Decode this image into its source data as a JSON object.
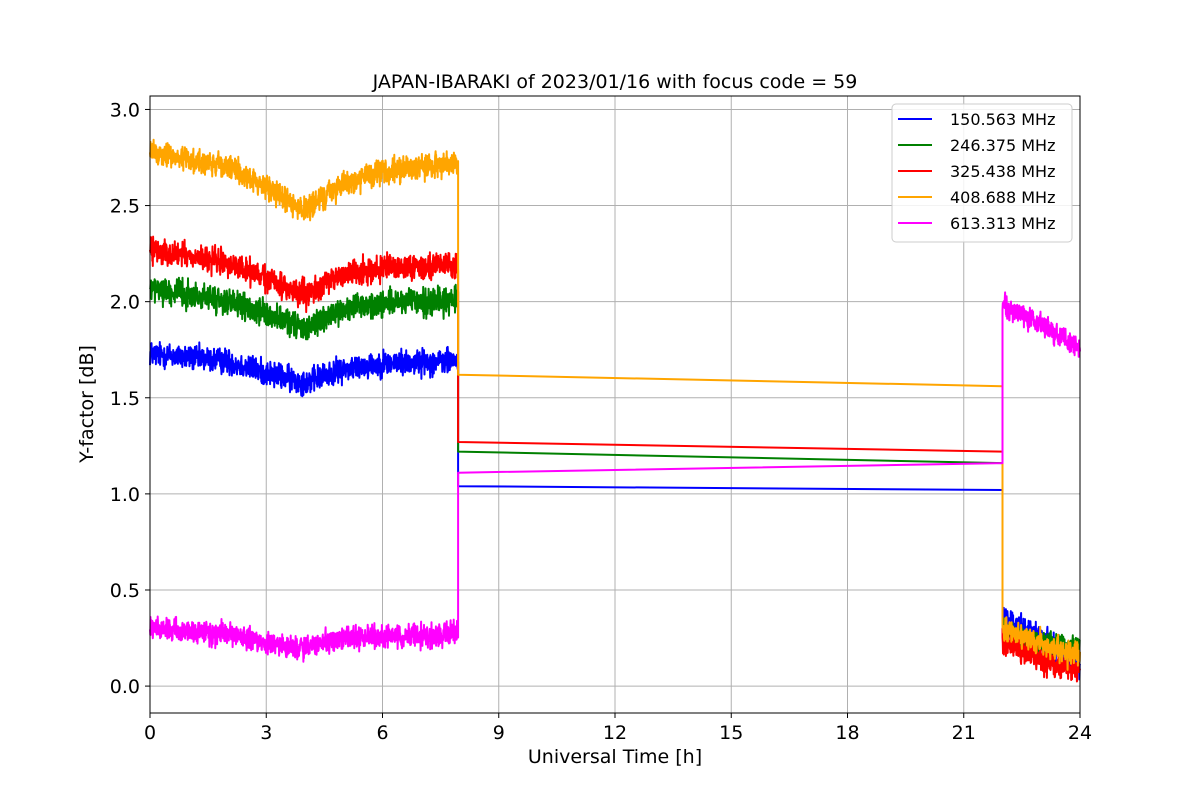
{
  "chart_data": {
    "type": "line",
    "title": "JAPAN-IBARAKI of 2023/01/16 with focus code = 59",
    "xlabel": "Universal Time [h]",
    "ylabel": "Y-factor [dB]",
    "xlim": [
      0,
      24
    ],
    "ylim": [
      -0.14,
      3.07
    ],
    "xticks": [
      0,
      3,
      6,
      9,
      12,
      15,
      18,
      21,
      24
    ],
    "yticks": [
      0.0,
      0.5,
      1.0,
      1.5,
      2.0,
      2.5,
      3.0
    ],
    "xtick_labels": [
      "0",
      "3",
      "6",
      "9",
      "12",
      "15",
      "18",
      "21",
      "24"
    ],
    "ytick_labels": [
      "0.0",
      "0.5",
      "1.0",
      "1.5",
      "2.0",
      "2.5",
      "3.0"
    ],
    "grid": true,
    "legend_position": "top-right",
    "series": [
      {
        "name": "150.563 MHz",
        "color": "#0000ff",
        "noise": 0.05,
        "segments": [
          {
            "x": [
              0,
              2,
              3,
              4,
              5,
              6,
              7.95
            ],
            "y": [
              1.73,
              1.69,
              1.63,
              1.58,
              1.65,
              1.68,
              1.69
            ]
          },
          {
            "x": [
              7.95,
              22.0
            ],
            "y": [
              1.04,
              1.02
            ]
          },
          {
            "x": [
              22.0,
              23.0,
              24.0
            ],
            "y": [
              0.35,
              0.25,
              0.1
            ]
          }
        ]
      },
      {
        "name": "246.375 MHz",
        "color": "#008000",
        "noise": 0.05,
        "segments": [
          {
            "x": [
              0,
              2,
              3,
              4,
              5,
              6,
              7.95
            ],
            "y": [
              2.07,
              2.0,
              1.93,
              1.86,
              1.96,
              1.99,
              2.01
            ]
          },
          {
            "x": [
              7.95,
              22.0
            ],
            "y": [
              1.22,
              1.16
            ]
          },
          {
            "x": [
              22.0,
              23.0,
              24.0
            ],
            "y": [
              0.28,
              0.22,
              0.2
            ]
          }
        ]
      },
      {
        "name": "325.438 MHz",
        "color": "#ff0000",
        "noise": 0.05,
        "segments": [
          {
            "x": [
              0,
              2,
              3,
              4,
              5,
              6,
              7.95
            ],
            "y": [
              2.27,
              2.2,
              2.12,
              2.03,
              2.15,
              2.17,
              2.2
            ]
          },
          {
            "x": [
              7.95,
              22.0
            ],
            "y": [
              1.27,
              1.22
            ]
          },
          {
            "x": [
              22.0,
              23.0,
              24.0
            ],
            "y": [
              0.22,
              0.14,
              0.08
            ]
          }
        ]
      },
      {
        "name": "408.688 MHz",
        "color": "#ffa500",
        "noise": 0.05,
        "segments": [
          {
            "x": [
              0,
              2,
              3,
              4,
              5,
              6,
              7.95
            ],
            "y": [
              2.78,
              2.7,
              2.6,
              2.47,
              2.62,
              2.67,
              2.73
            ]
          },
          {
            "x": [
              7.95,
              22.0
            ],
            "y": [
              1.62,
              1.56
            ]
          },
          {
            "x": [
              22.0,
              23.0,
              24.0
            ],
            "y": [
              0.3,
              0.22,
              0.15
            ]
          }
        ]
      },
      {
        "name": "613.313 MHz",
        "color": "#ff00ff",
        "noise": 0.045,
        "segments": [
          {
            "x": [
              0,
              2,
              3,
              4,
              5,
              6,
              7.95
            ],
            "y": [
              0.3,
              0.27,
              0.22,
              0.2,
              0.25,
              0.26,
              0.27
            ]
          },
          {
            "x": [
              7.95,
              22.0
            ],
            "y": [
              1.11,
              1.16
            ]
          },
          {
            "x": [
              22.0,
              23.0,
              24.0
            ],
            "y": [
              1.98,
              1.88,
              1.75
            ]
          }
        ]
      }
    ]
  }
}
